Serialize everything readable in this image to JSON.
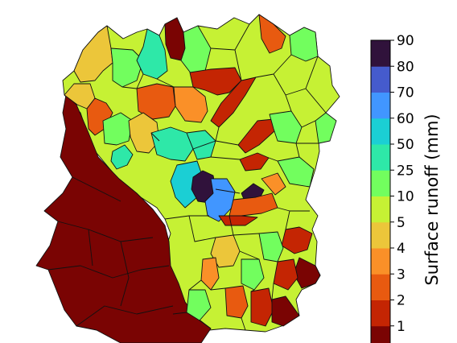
{
  "colorbar": {
    "title": "Surface runoff (mm)",
    "classes": [
      {
        "label": "1",
        "color": "#7a0403"
      },
      {
        "label": "2",
        "color": "#c42503"
      },
      {
        "label": "3",
        "color": "#e85a10"
      },
      {
        "label": "4",
        "color": "#fa9028"
      },
      {
        "label": "5",
        "color": "#ecc63a"
      },
      {
        "label": "10",
        "color": "#c6f134"
      },
      {
        "label": "25",
        "color": "#72fe5e"
      },
      {
        "label": "50",
        "color": "#2ee8a8"
      },
      {
        "label": "60",
        "color": "#1bcfd4"
      },
      {
        "label": "70",
        "color": "#4196ff"
      },
      {
        "label": "80",
        "color": "#455bcd"
      },
      {
        "label": "90",
        "color": "#30123b"
      }
    ]
  }
}
